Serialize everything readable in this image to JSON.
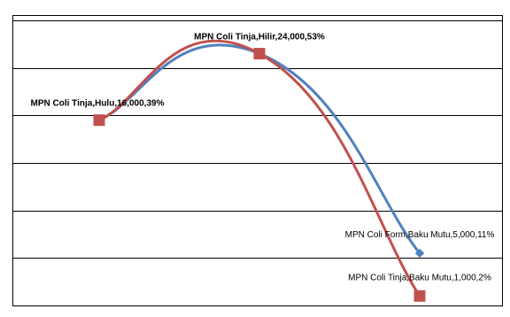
{
  "chart_data": {
    "type": "line",
    "title": "",
    "xlabel": "",
    "ylabel": "",
    "categories": [
      "Hulu",
      "Hilir",
      "Baku Mutu"
    ],
    "grid": true,
    "legend": "none",
    "ylim": [
      0,
      60
    ],
    "series": [
      {
        "name": "MPN Coli Form",
        "color": "#4F81BD",
        "marker": "diamond",
        "smooth": true,
        "values": [
          39,
          53,
          11
        ]
      },
      {
        "name": "MPN Coli Tinja",
        "color": "#C0504D",
        "marker": "square",
        "smooth": true,
        "values": [
          39,
          53,
          2
        ]
      }
    ],
    "data_labels": [
      {
        "text": "MPN Coli Tinja,Hulu,16,000,39%",
        "series": 1,
        "point": 0,
        "bold": true
      },
      {
        "text": "MPN Coli Tinja,Hilir,24,000,53%",
        "series": 1,
        "point": 1,
        "bold": true
      },
      {
        "text": "MPN Coli Form,Baku Mutu,5,000,11%",
        "series": 0,
        "point": 2,
        "bold": false
      },
      {
        "text": "MPN Coli Tinja,Baku Mutu,1,000,2%",
        "series": 1,
        "point": 2,
        "bold": false
      }
    ]
  }
}
